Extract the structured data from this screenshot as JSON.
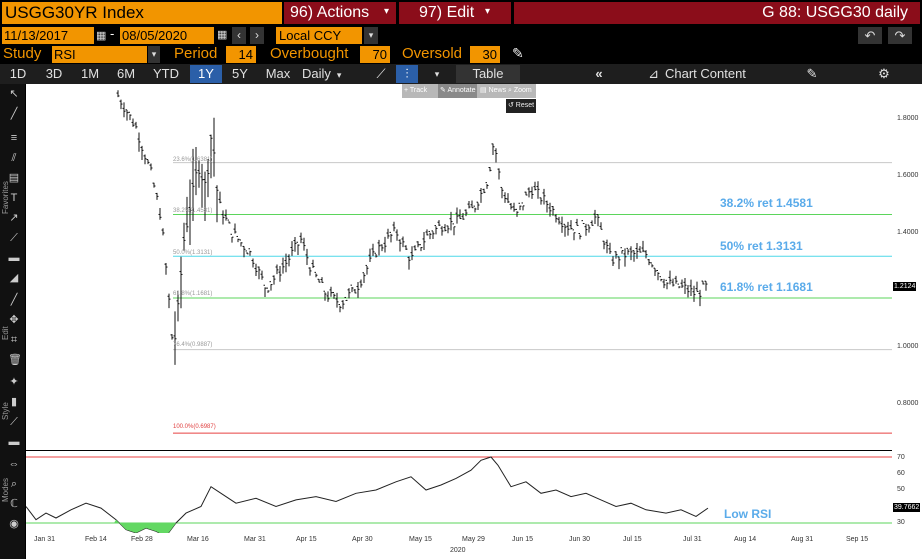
{
  "header": {
    "security": "USGG30YR Index",
    "actions": "96) Actions",
    "edit": "97) Edit",
    "page_title": "G 88: USGG30 daily"
  },
  "range": {
    "start_date": "11/13/2017",
    "end_date": "08/05/2020",
    "currency": "Local CCY"
  },
  "study": {
    "label": "Study",
    "value": "RSI",
    "period_label": "Period",
    "period_value": "14",
    "overbought_label": "Overbought",
    "overbought_value": "70",
    "oversold_label": "Oversold",
    "oversold_value": "30"
  },
  "toolbar": {
    "periods": [
      "1D",
      "3D",
      "1M",
      "6M",
      "YTD",
      "1Y",
      "5Y",
      "Max"
    ],
    "selected_period": "1Y",
    "frequency": "Daily",
    "table": "Table",
    "chart_content": "Chart Content"
  },
  "chart_tools": {
    "track": "Track",
    "annotate": "Annotate",
    "news": "News",
    "zoom": "Zoom",
    "reset": "Reset"
  },
  "side_labels": [
    "Favorites",
    "Edit",
    "Style",
    "Modes"
  ],
  "chart_data": {
    "type": "bar",
    "y_ticks": [
      "1.8000",
      "1.6000",
      "1.4000",
      "1.2000",
      "1.0000",
      "0.8000"
    ],
    "last_price": "1.2124",
    "fib_levels": [
      {
        "small": "23.6%(1.6381)",
        "value": 1.6381,
        "color": "#c8c8c8"
      },
      {
        "small": "38.2%(1.4581)",
        "value": 1.4581,
        "color": "#5bd55b",
        "label": "38.2% ret 1.4581"
      },
      {
        "small": "50.0%(1.3131)",
        "value": 1.3131,
        "color": "#4fd8e8",
        "label": "50% ret 1.3131"
      },
      {
        "small": "61.8%(1.1681)",
        "value": 1.1681,
        "color": "#5bd55b",
        "label": "61.8% ret 1.1681"
      },
      {
        "small": "76.4%(0.9887)",
        "value": 0.9887,
        "color": "#c8c8c8"
      },
      {
        "small": "100.0%(0.6987)",
        "value": 0.6987,
        "color": "#e84040"
      }
    ],
    "x_ticks": [
      "Jan 31",
      "Feb 14",
      "Feb 28",
      "Mar 16",
      "Mar 31",
      "Apr 15",
      "Apr 30",
      "May 15",
      "May 29",
      "Jun 15",
      "Jun 30",
      "Jul 15",
      "Jul 31",
      "Aug 14",
      "Aug 31",
      "Sep 15"
    ],
    "year_label": "2020",
    "rsi": {
      "y_ticks": [
        "70",
        "60",
        "50",
        "40",
        "30"
      ],
      "last_value": "39.7662",
      "label": "Low RSI",
      "overbought": 70,
      "oversold": 30
    }
  }
}
